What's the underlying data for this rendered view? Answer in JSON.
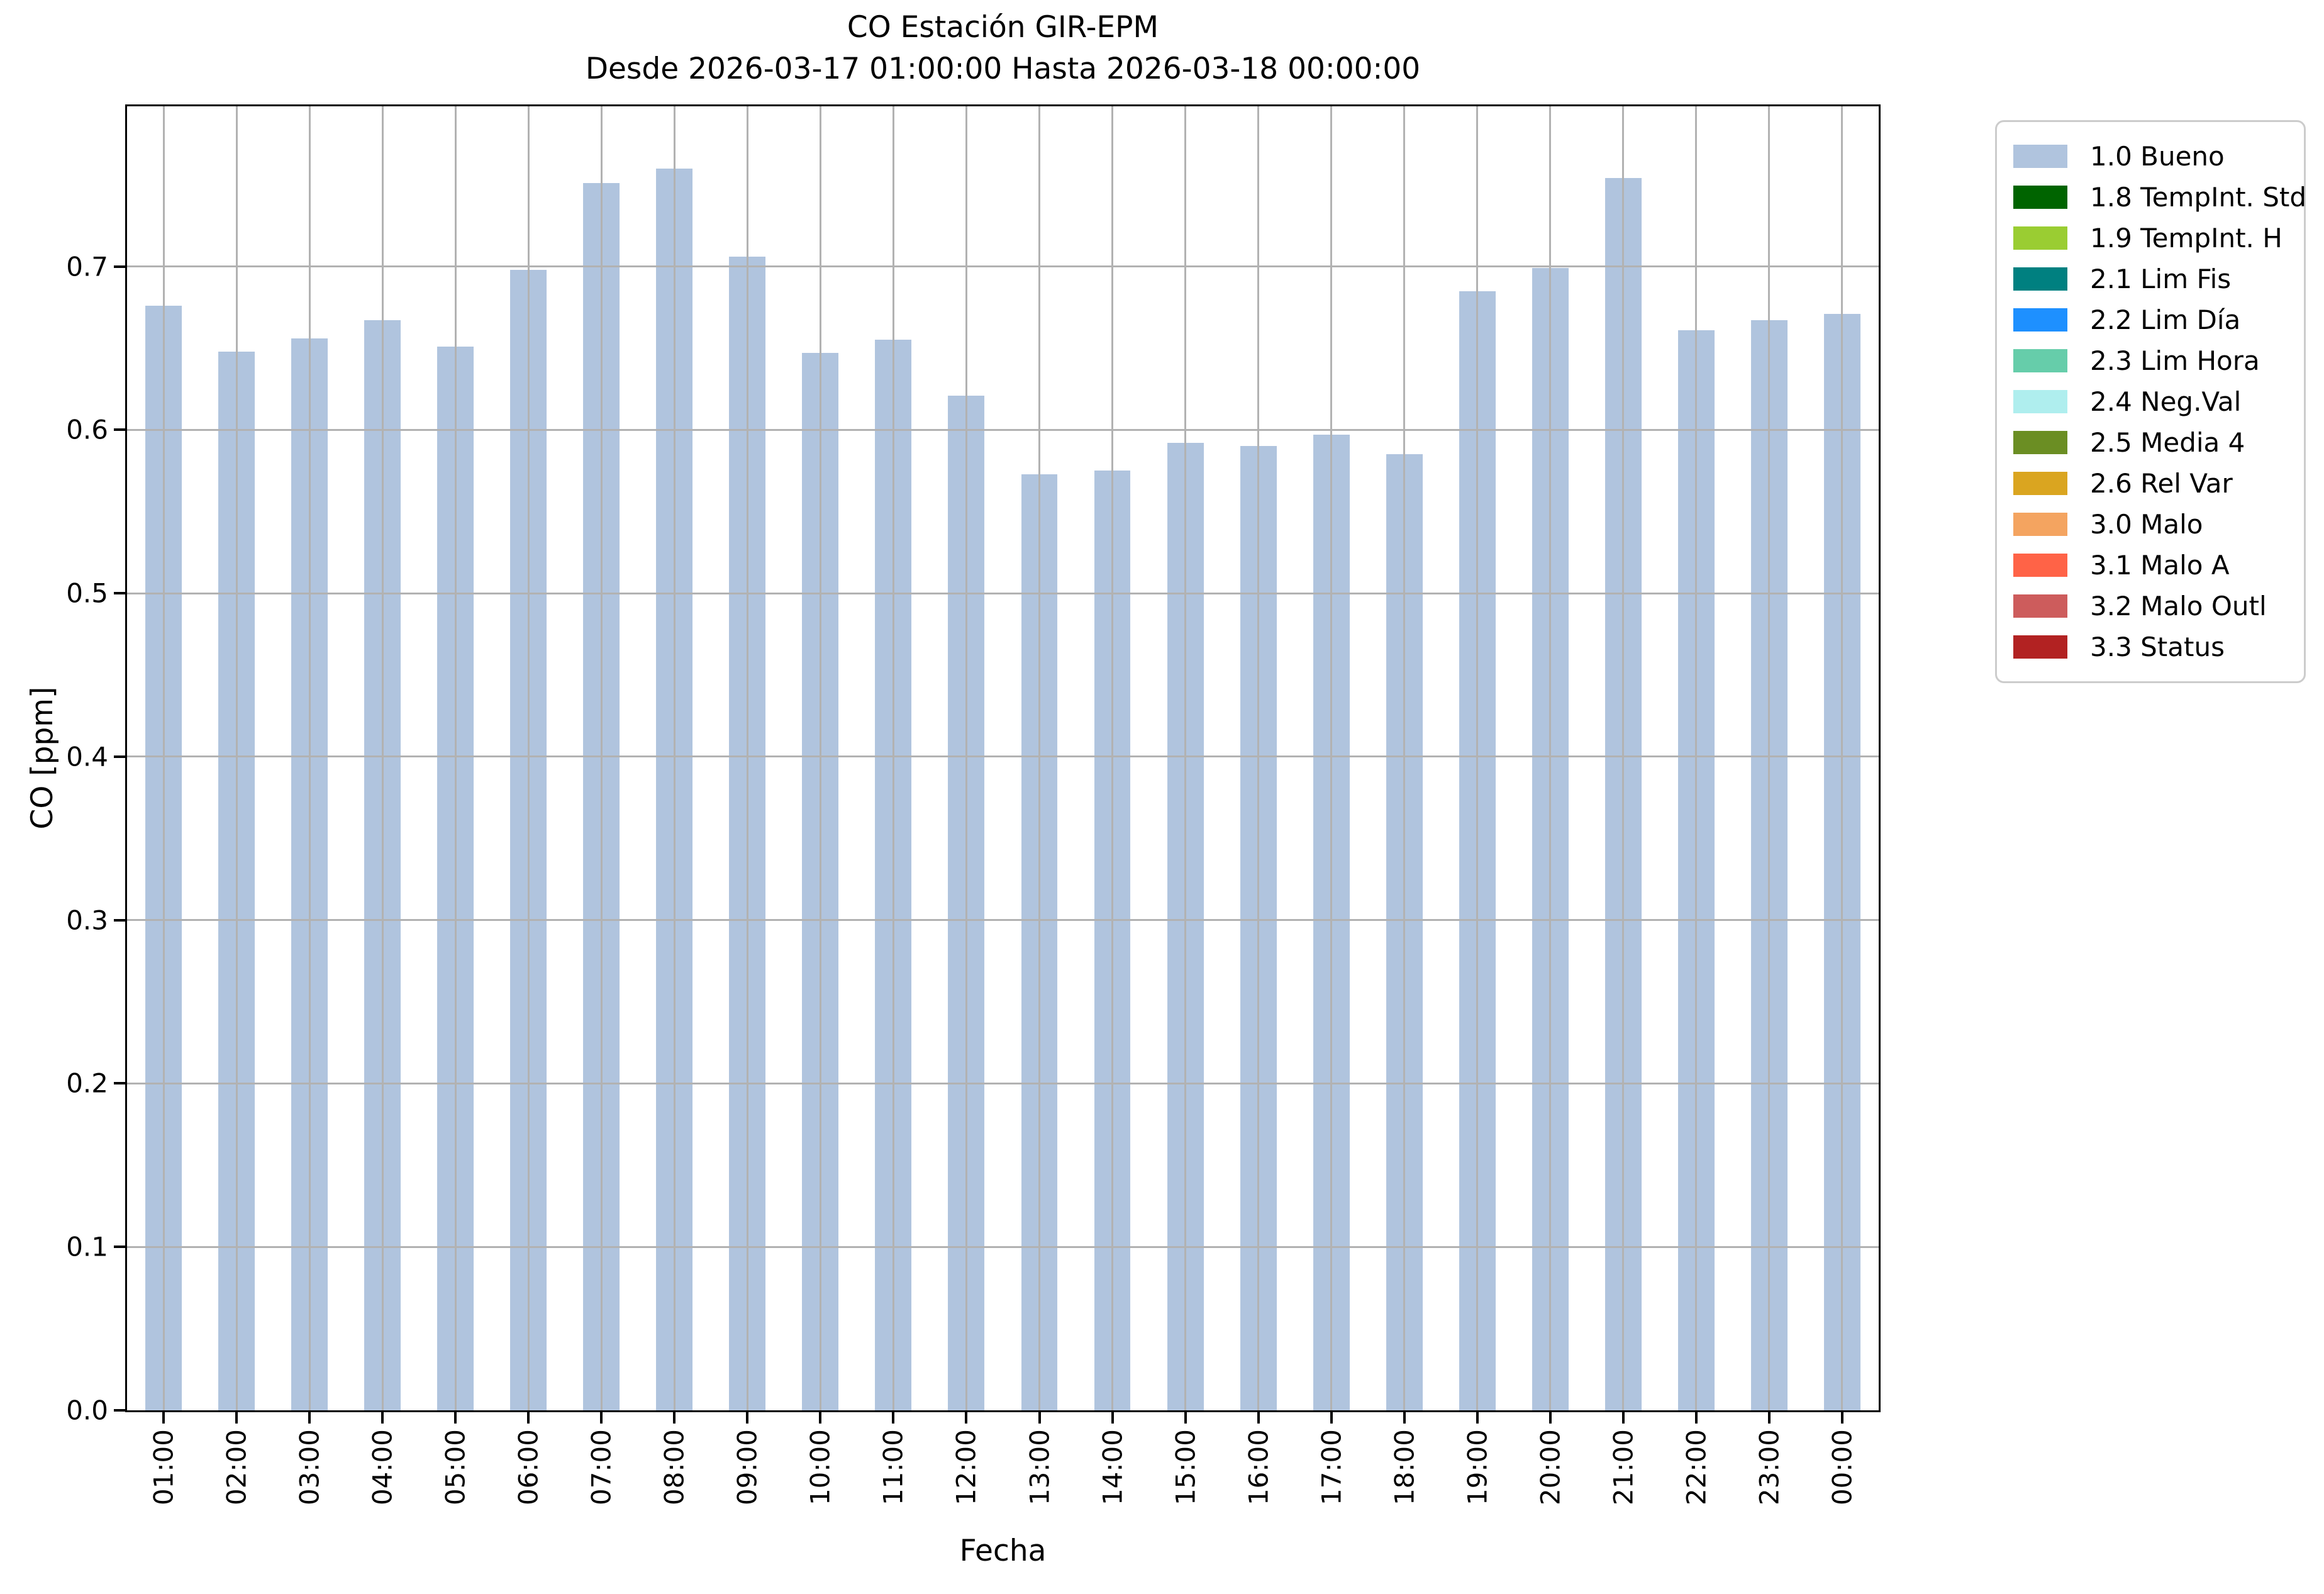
{
  "chart_data": {
    "type": "bar",
    "title": "CO Estación GIR-EPM",
    "subtitle": "Desde 2026-03-17 01:00:00 Hasta 2026-03-18 00:00:00",
    "xlabel": "Fecha",
    "ylabel": "CO [ppm]",
    "ylim": [
      0,
      0.798
    ],
    "grid": true,
    "bar_color": "#b0c4de",
    "bar_width_percent": 2.08,
    "categories": [
      "01:00",
      "02:00",
      "03:00",
      "04:00",
      "05:00",
      "06:00",
      "07:00",
      "08:00",
      "09:00",
      "10:00",
      "11:00",
      "12:00",
      "13:00",
      "14:00",
      "15:00",
      "16:00",
      "17:00",
      "18:00",
      "19:00",
      "20:00",
      "21:00",
      "22:00",
      "23:00",
      "00:00"
    ],
    "values": [
      0.676,
      0.648,
      0.656,
      0.667,
      0.651,
      0.698,
      0.751,
      0.76,
      0.706,
      0.647,
      0.655,
      0.621,
      0.573,
      0.575,
      0.592,
      0.59,
      0.597,
      0.585,
      0.685,
      0.699,
      0.754,
      0.661,
      0.667,
      0.671
    ],
    "series_name": "1.0 Bueno",
    "yticks": [
      {
        "value": 0.0,
        "label": "0.0"
      },
      {
        "value": 0.1,
        "label": "0.1"
      },
      {
        "value": 0.2,
        "label": "0.2"
      },
      {
        "value": 0.3,
        "label": "0.3"
      },
      {
        "value": 0.4,
        "label": "0.4"
      },
      {
        "value": 0.5,
        "label": "0.5"
      },
      {
        "value": 0.6,
        "label": "0.6"
      },
      {
        "value": 0.7,
        "label": "0.7"
      }
    ],
    "legend_position": "outside upper right",
    "legend": [
      {
        "label": "1.0 Bueno",
        "color": "#b0c4de"
      },
      {
        "label": "1.8 TempInt. Std",
        "color": "#006400"
      },
      {
        "label": "1.9 TempInt. H",
        "color": "#9acd32"
      },
      {
        "label": "2.1 Lim Fis",
        "color": "#008080"
      },
      {
        "label": "2.2 Lim Día",
        "color": "#1e90ff"
      },
      {
        "label": "2.3 Lim Hora",
        "color": "#66cdaa"
      },
      {
        "label": "2.4 Neg.Val",
        "color": "#afeeee"
      },
      {
        "label": "2.5 Media 4",
        "color": "#6b8e23"
      },
      {
        "label": "2.6 Rel Var",
        "color": "#daa520"
      },
      {
        "label": "3.0 Malo",
        "color": "#f4a460"
      },
      {
        "label": "3.1 Malo A",
        "color": "#ff6347"
      },
      {
        "label": "3.2 Malo Outl",
        "color": "#cd5c5c"
      },
      {
        "label": "3.3 Status",
        "color": "#b22222"
      }
    ]
  }
}
